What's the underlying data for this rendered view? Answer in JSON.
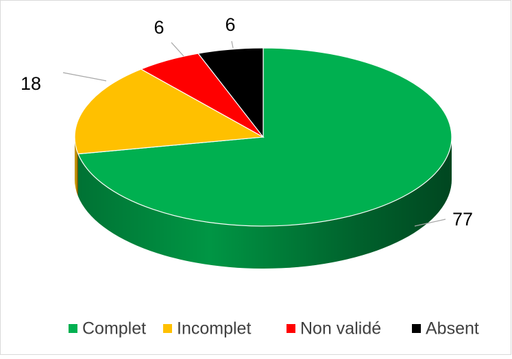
{
  "chart_data": {
    "type": "pie",
    "three_d": true,
    "categories": [
      "Complet",
      "Incomplet",
      "Non validé",
      "Absent"
    ],
    "values": [
      77,
      18,
      6,
      6
    ],
    "colors": [
      "#00b050",
      "#ffc000",
      "#ff0000",
      "#000000"
    ],
    "legend": "bottom"
  }
}
